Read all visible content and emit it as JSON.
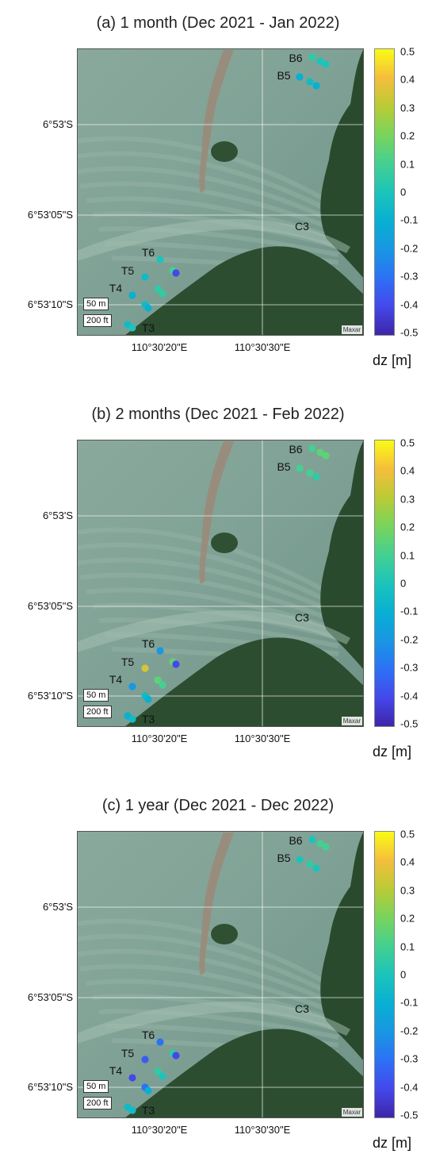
{
  "panels": [
    {
      "title": "(a) 1 month (Dec 2021 - Jan 2022)",
      "points": [
        {
          "zone": "B6",
          "dz": 0.05
        },
        {
          "zone": "B6",
          "dz": 0.0
        },
        {
          "zone": "B6",
          "dz": 0.0
        },
        {
          "zone": "B5",
          "dz": -0.1
        },
        {
          "zone": "B5",
          "dz": -0.05
        },
        {
          "zone": "B5",
          "dz": -0.1
        },
        {
          "zone": "T6",
          "dz": 0.0
        },
        {
          "zone": "T6",
          "dz": 0.1
        },
        {
          "zone": "T6",
          "dz": -0.4
        },
        {
          "zone": "T5",
          "dz": -0.05
        },
        {
          "zone": "T5",
          "dz": 0.05
        },
        {
          "zone": "T5",
          "dz": 0.05
        },
        {
          "zone": "T4",
          "dz": -0.1
        },
        {
          "zone": "T4",
          "dz": -0.05
        },
        {
          "zone": "T4",
          "dz": -0.1
        },
        {
          "zone": "T3",
          "dz": -0.05
        },
        {
          "zone": "T3",
          "dz": 0.0
        }
      ]
    },
    {
      "title": "(b) 2 months (Dec 2021 - Feb 2022)",
      "points": [
        {
          "zone": "B6",
          "dz": 0.1
        },
        {
          "zone": "B6",
          "dz": 0.15
        },
        {
          "zone": "B6",
          "dz": 0.15
        },
        {
          "zone": "B5",
          "dz": 0.1
        },
        {
          "zone": "B5",
          "dz": 0.1
        },
        {
          "zone": "B5",
          "dz": 0.05
        },
        {
          "zone": "T6",
          "dz": -0.2
        },
        {
          "zone": "T6",
          "dz": 0.15
        },
        {
          "zone": "T6",
          "dz": -0.4
        },
        {
          "zone": "T5",
          "dz": 0.35
        },
        {
          "zone": "T5",
          "dz": 0.15
        },
        {
          "zone": "T5",
          "dz": 0.1
        },
        {
          "zone": "T4",
          "dz": -0.2
        },
        {
          "zone": "T4",
          "dz": -0.05
        },
        {
          "zone": "T4",
          "dz": -0.1
        },
        {
          "zone": "T3",
          "dz": -0.1
        },
        {
          "zone": "T3",
          "dz": -0.05
        }
      ]
    },
    {
      "title": "(c) 1 year (Dec 2021 - Dec 2022)",
      "points": [
        {
          "zone": "B6",
          "dz": 0.0
        },
        {
          "zone": "B6",
          "dz": 0.1
        },
        {
          "zone": "B6",
          "dz": 0.1
        },
        {
          "zone": "B5",
          "dz": 0.0
        },
        {
          "zone": "B5",
          "dz": 0.05
        },
        {
          "zone": "B5",
          "dz": 0.0
        },
        {
          "zone": "T6",
          "dz": -0.3
        },
        {
          "zone": "T6",
          "dz": 0.05
        },
        {
          "zone": "T6",
          "dz": -0.4
        },
        {
          "zone": "T5",
          "dz": -0.35
        },
        {
          "zone": "T5",
          "dz": 0.05
        },
        {
          "zone": "T5",
          "dz": 0.0
        },
        {
          "zone": "T4",
          "dz": -0.4
        },
        {
          "zone": "T4",
          "dz": -0.3
        },
        {
          "zone": "T4",
          "dz": -0.1
        },
        {
          "zone": "T3",
          "dz": -0.05
        },
        {
          "zone": "T3",
          "dz": -0.05
        }
      ]
    }
  ],
  "map": {
    "lat_labels": [
      "6°53'S",
      "6°53'05\"S",
      "6°53'10\"S"
    ],
    "lon_labels": [
      "110°30'20\"E",
      "110°30'30\"E"
    ],
    "site_labels": [
      "B6",
      "B5",
      "C3",
      "T6",
      "T5",
      "T4",
      "T3"
    ],
    "scale_m": "50 m",
    "scale_ft": "200 ft",
    "attribution": "Maxar"
  },
  "colorbar": {
    "ticks": [
      "0.5",
      "0.4",
      "0.3",
      "0.2",
      "0.1",
      "0",
      "-0.1",
      "-0.2",
      "-0.3",
      "-0.4",
      "-0.5"
    ],
    "unit": "dz [m]",
    "range": [
      -0.5,
      0.5
    ],
    "colormap": "parula"
  },
  "colors": {
    "water": "#7fa195",
    "mangrove": "#2a4a2e",
    "grid": "#ffffff"
  }
}
